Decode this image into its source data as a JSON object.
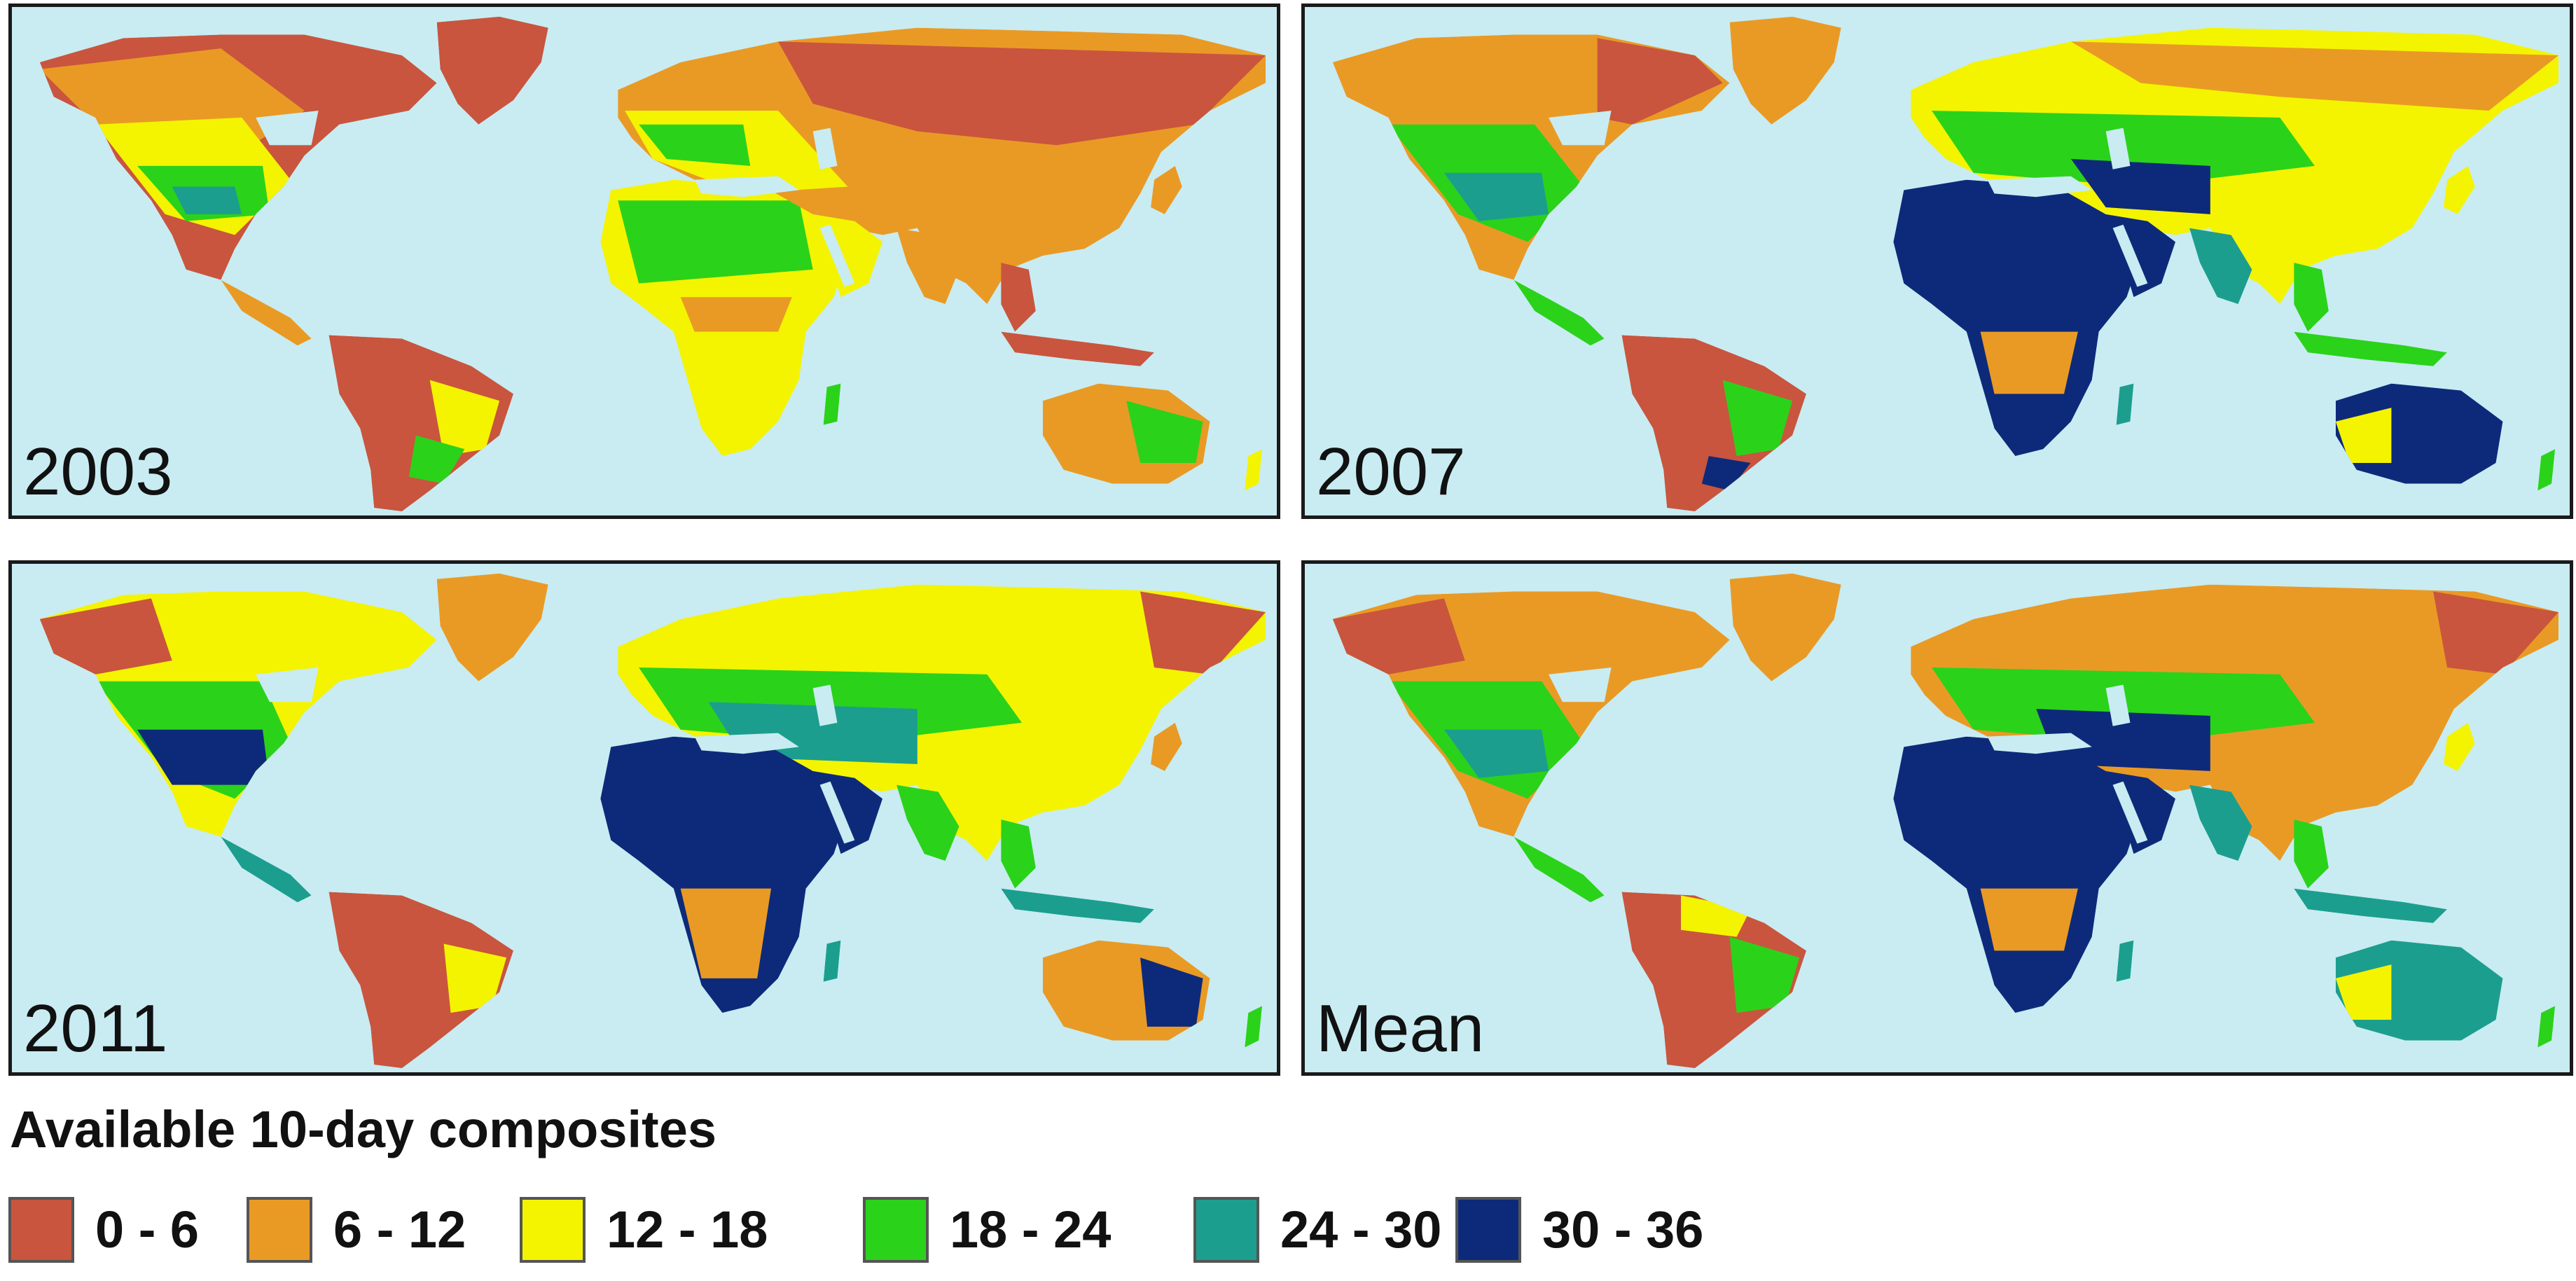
{
  "colors": {
    "ocean": "#c8ecf2",
    "class_0_6": "#c9553e",
    "class_6_12": "#e99a25",
    "class_12_18": "#f4f400",
    "class_18_24": "#2bd21a",
    "class_24_30": "#1c9e8e",
    "class_30_36": "#0d2a7a",
    "border": "#1a1a1a"
  },
  "panels": [
    {
      "label": "2003"
    },
    {
      "label": "2007"
    },
    {
      "label": "2011"
    },
    {
      "label": "Mean"
    }
  ],
  "legend": {
    "title": "Available 10-day composites",
    "items": [
      {
        "label": "0 - 6",
        "color": "#c9553e"
      },
      {
        "label": "6 - 12",
        "color": "#e99a25"
      },
      {
        "label": "12 - 18",
        "color": "#f4f400"
      },
      {
        "label": "18 - 24",
        "color": "#2bd21a"
      },
      {
        "label": "24 - 30",
        "color": "#1c9e8e"
      },
      {
        "label": "30 - 36",
        "color": "#0d2a7a"
      }
    ]
  }
}
